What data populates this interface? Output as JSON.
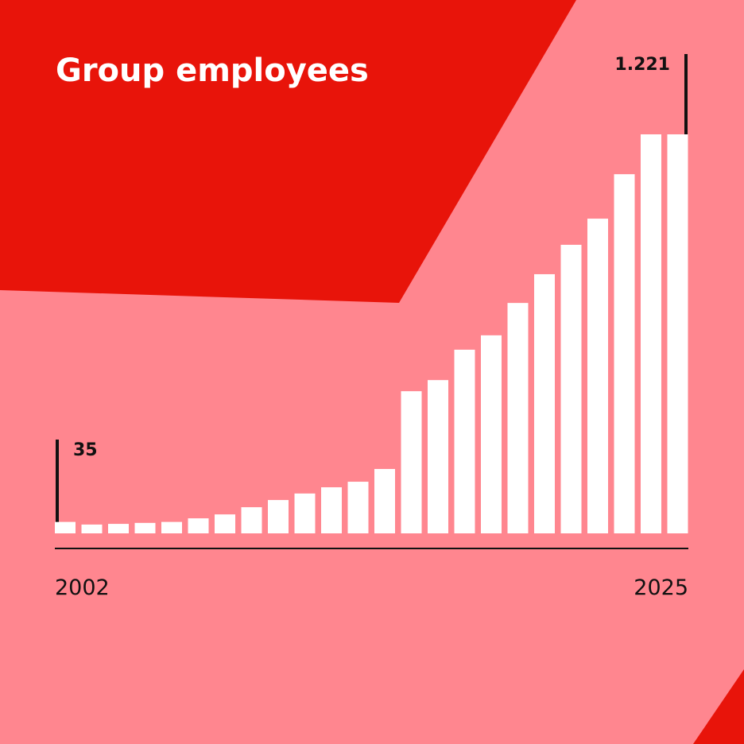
{
  "chart_data": {
    "type": "bar",
    "title": "Group employees",
    "categories": [
      "2002",
      null,
      null,
      null,
      null,
      null,
      null,
      null,
      null,
      null,
      null,
      null,
      null,
      null,
      null,
      null,
      null,
      null,
      null,
      null,
      null,
      null,
      null,
      "2025"
    ],
    "values": [
      35,
      27,
      29,
      32,
      35,
      46,
      58,
      80,
      102,
      122,
      141,
      158,
      197,
      435,
      469,
      562,
      606,
      705,
      793,
      883,
      963,
      1099,
      1221,
      1221
    ],
    "value_labels": [
      "35",
      null,
      null,
      null,
      null,
      null,
      null,
      null,
      null,
      null,
      null,
      null,
      null,
      null,
      null,
      null,
      null,
      null,
      null,
      null,
      null,
      null,
      null,
      "1.221"
    ],
    "color": "#ffffff"
  }
}
